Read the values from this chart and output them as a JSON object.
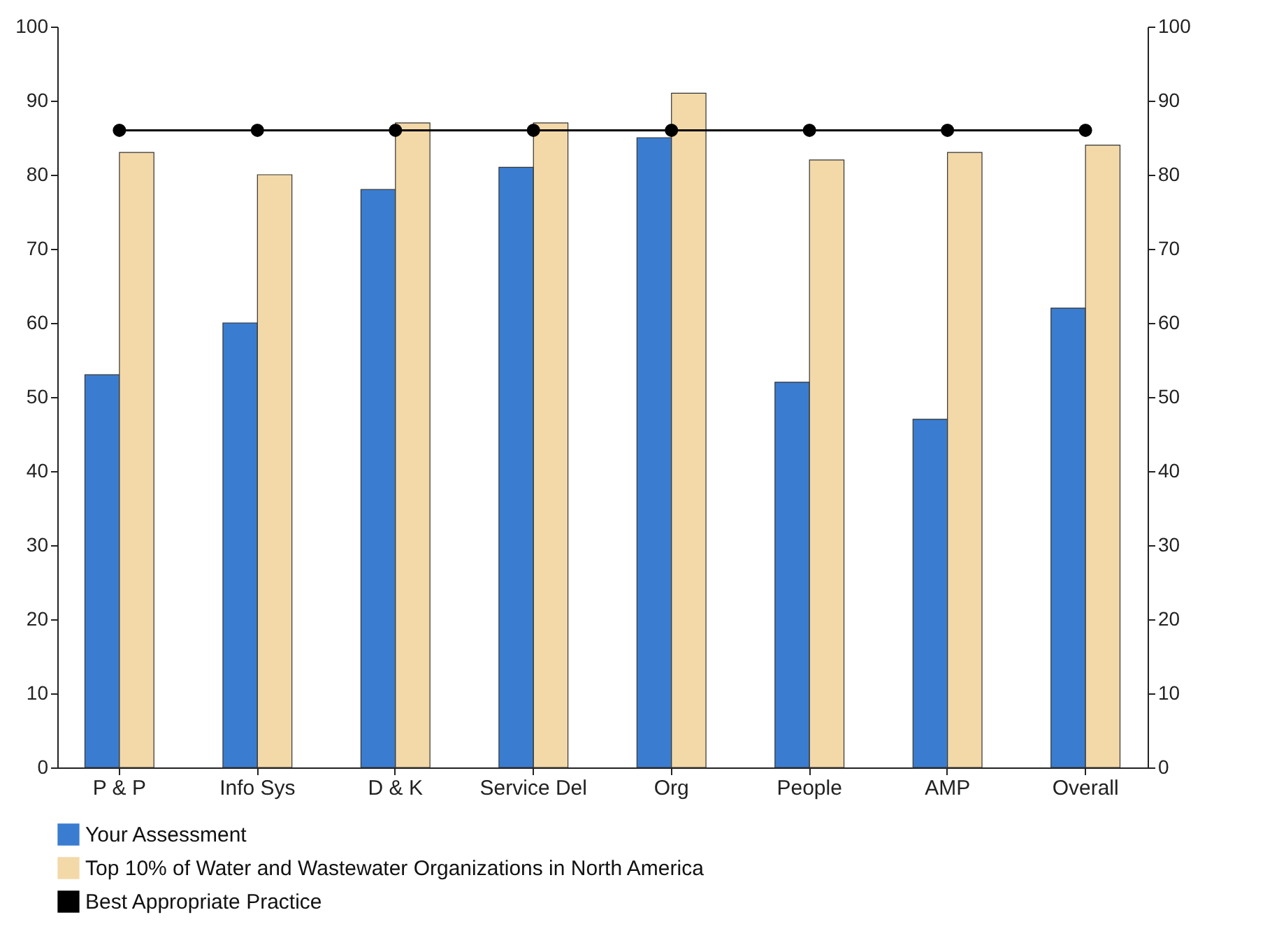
{
  "chart_data": {
    "type": "bar",
    "categories": [
      "P & P",
      "Info Sys",
      "D & K",
      "Service Del",
      "Org",
      "People",
      "AMP",
      "Overall"
    ],
    "series": [
      {
        "name": "Your Assessment",
        "color": "#3a7dd0",
        "values": [
          53,
          60,
          78,
          81,
          85,
          52,
          47,
          62
        ]
      },
      {
        "name": "Top 10% of Water and Wastewater Organizations in North America",
        "color": "#f3d9a8",
        "values": [
          83,
          80,
          87,
          87,
          91,
          82,
          83,
          84
        ]
      },
      {
        "name": "Best Appropriate Practice",
        "type": "line",
        "color": "#000000",
        "marker": "circle",
        "values": [
          86,
          86,
          86,
          86,
          86,
          86,
          86,
          86
        ]
      }
    ],
    "ylim": [
      0,
      100
    ],
    "yticks": [
      0,
      10,
      20,
      30,
      40,
      50,
      60,
      70,
      80,
      90,
      100
    ],
    "y2lim": [
      0,
      100
    ],
    "y2ticks": [
      0,
      10,
      20,
      30,
      40,
      50,
      60,
      70,
      80,
      90,
      100
    ],
    "grid": false,
    "legend": "bottom"
  }
}
